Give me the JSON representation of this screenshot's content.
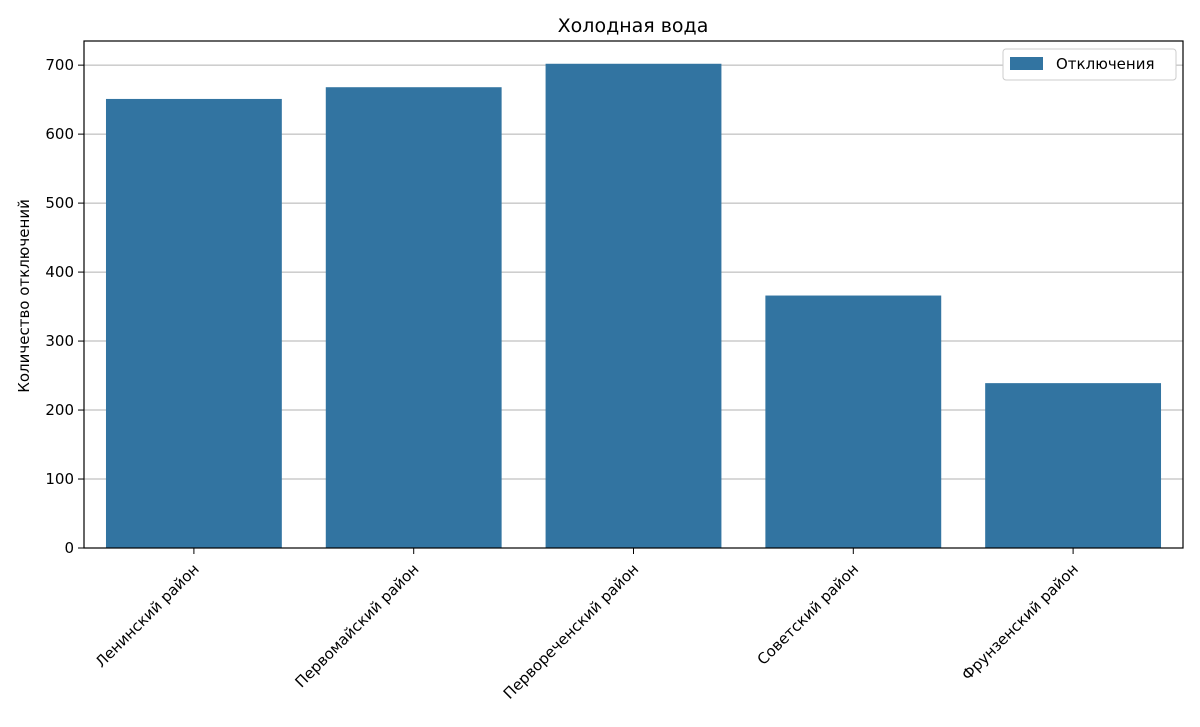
{
  "chart_data": {
    "type": "bar",
    "title": "Холодная вода",
    "xlabel": "",
    "ylabel": "Количество отключений",
    "categories": [
      "Ленинский район",
      "Первомайский район",
      "Первореченский район",
      "Советский район",
      "Фрунзенский район"
    ],
    "series": [
      {
        "name": "Отключения",
        "values": [
          651,
          668,
          702,
          366,
          239
        ]
      }
    ],
    "ylim": [
      0,
      735
    ],
    "yticks": [
      0,
      100,
      200,
      300,
      400,
      500,
      600,
      700
    ],
    "grid": "horizontal",
    "legend_position": "top-right",
    "bar_color": "#3274a1",
    "x_tick_rotation": -45
  }
}
